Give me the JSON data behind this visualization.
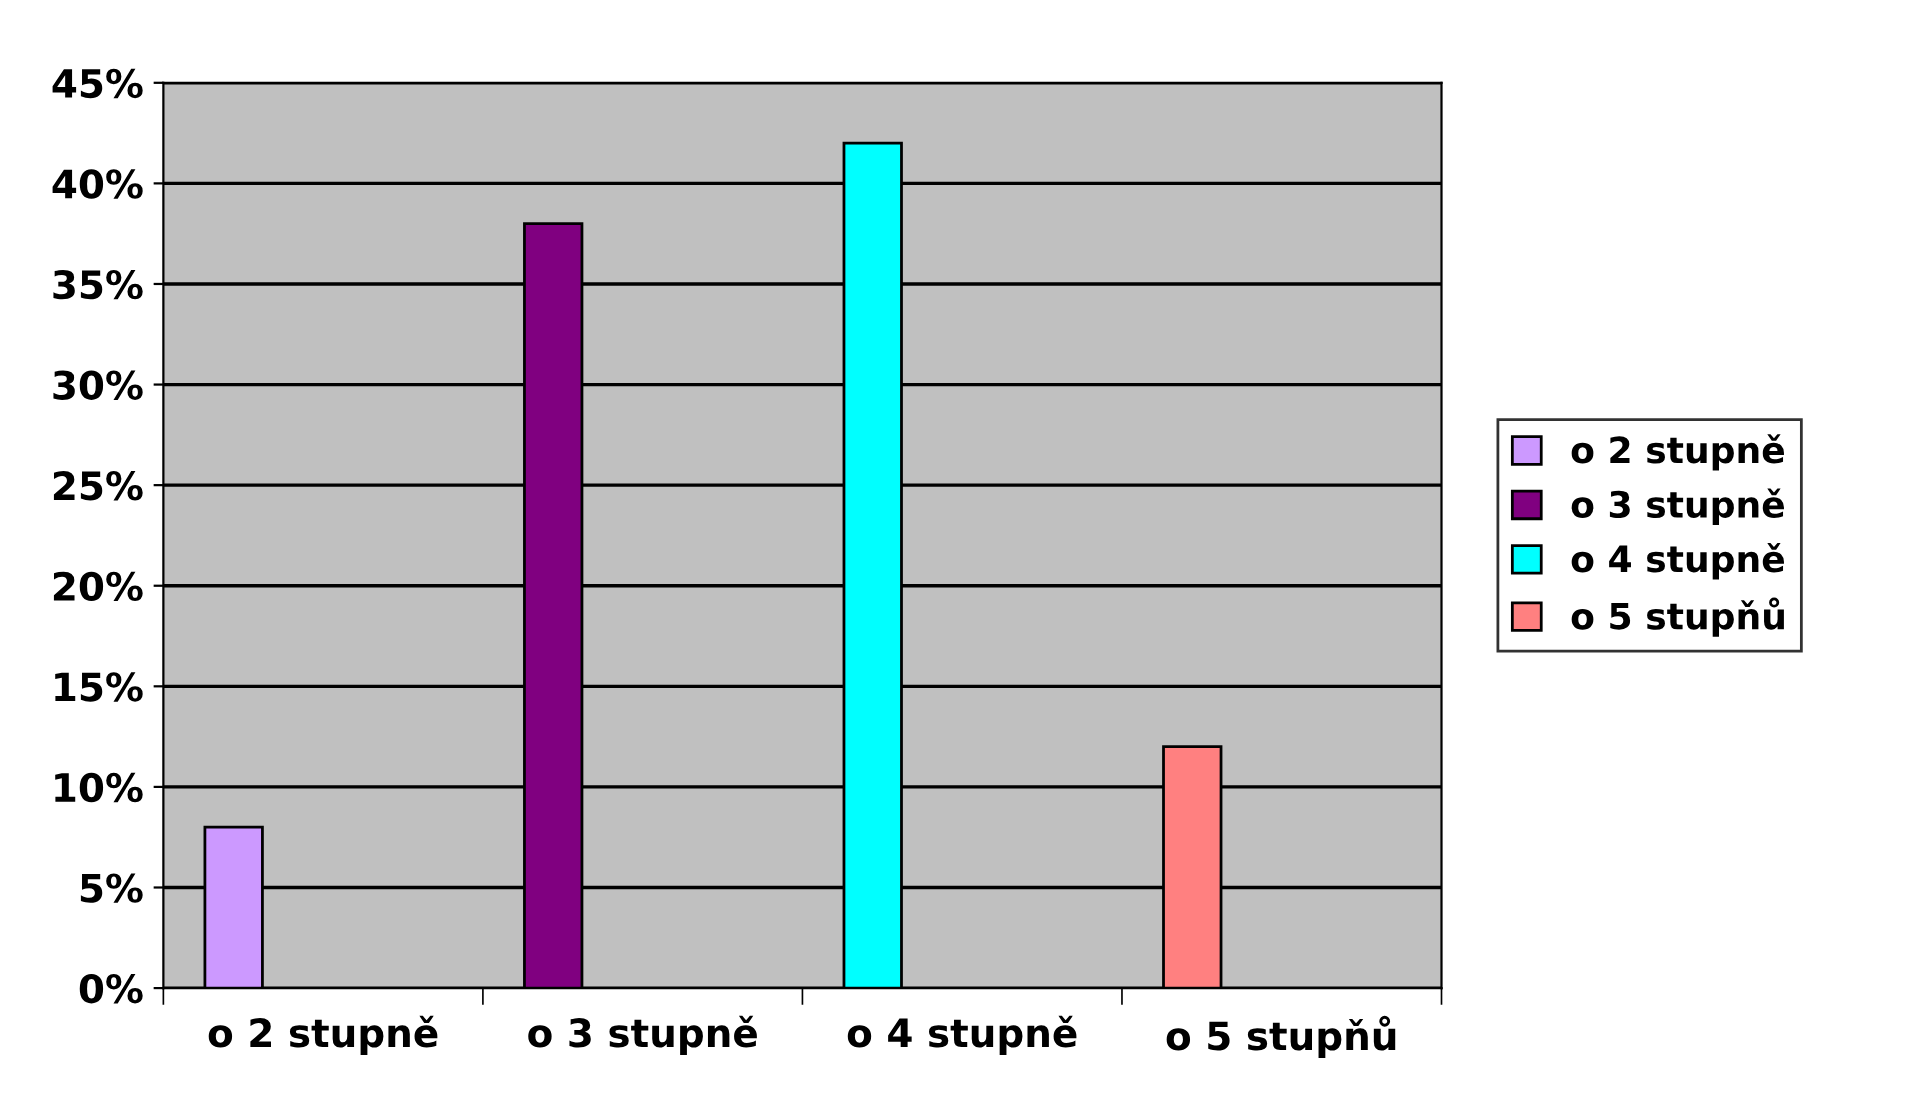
{
  "chart_data": {
    "type": "bar",
    "categories": [
      "o 2 stupně",
      "o 3 stupně",
      "o 4 stupně",
      "o 5 stupňů"
    ],
    "series": [
      {
        "name": "o 2 stupně",
        "color": "#cc99ff",
        "values": [
          8,
          null,
          null,
          null
        ]
      },
      {
        "name": "o 3 stupně",
        "color": "#800080",
        "values": [
          null,
          38,
          null,
          null
        ]
      },
      {
        "name": "o 4 stupně",
        "color": "#00ffff",
        "values": [
          null,
          null,
          42,
          null
        ]
      },
      {
        "name": "o 5 stupňů",
        "color": "#ff8080",
        "values": [
          null,
          null,
          null,
          12
        ]
      }
    ],
    "ylim": [
      0,
      45
    ],
    "yticks": [
      {
        "value": 0,
        "label": "0%"
      },
      {
        "value": 5,
        "label": "5%"
      },
      {
        "value": 10,
        "label": "10%"
      },
      {
        "value": 15,
        "label": "15%"
      },
      {
        "value": 20,
        "label": "20%"
      },
      {
        "value": 25,
        "label": "25%"
      },
      {
        "value": 30,
        "label": "30%"
      },
      {
        "value": 35,
        "label": "35%"
      },
      {
        "value": 40,
        "label": "40%"
      },
      {
        "value": 45,
        "label": "45%"
      }
    ],
    "grid": "y",
    "legend": "right"
  }
}
